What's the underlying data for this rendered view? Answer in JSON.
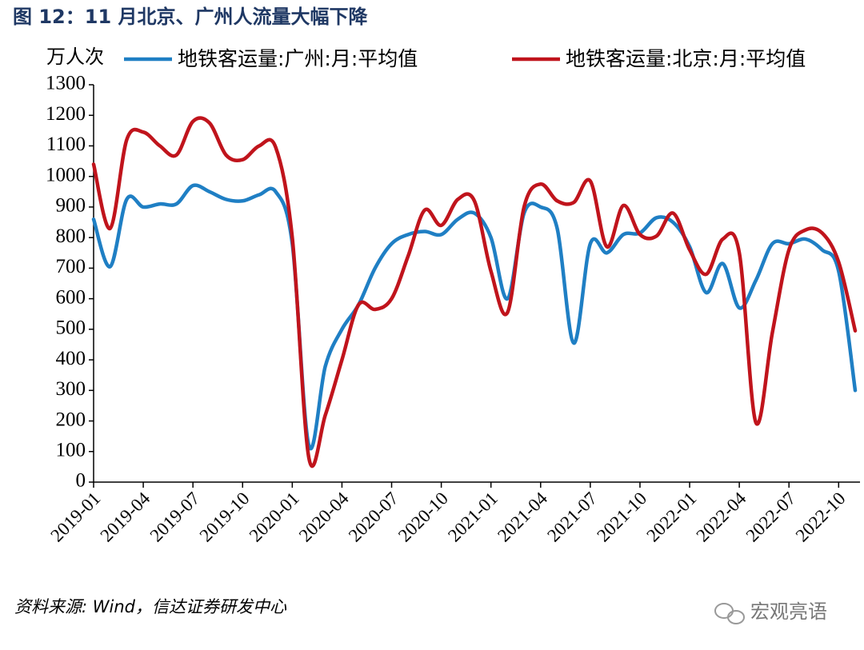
{
  "chart_data": {
    "type": "line",
    "title": "图 12：11 月北京、广州人流量大幅下降",
    "y_label": "万人次",
    "source": "资料来源: Wind，信达证券研发中心",
    "watermark": "宏观亮语",
    "categories": [
      "2019-01",
      null,
      null,
      "2019-04",
      null,
      null,
      "2019-07",
      null,
      null,
      "2019-10",
      null,
      null,
      "2020-01",
      null,
      null,
      "2020-04",
      null,
      null,
      "2020-07",
      null,
      null,
      "2020-10",
      null,
      null,
      "2021-01",
      null,
      null,
      "2021-04",
      null,
      null,
      "2021-07",
      null,
      null,
      "2021-10",
      null,
      null,
      "2022-01",
      null,
      null,
      "2022-04",
      null,
      null,
      "2022-07",
      null,
      null,
      "2022-10",
      null
    ],
    "series": [
      {
        "name": "地铁客运量:广州:月:平均值",
        "color": "#1f7fc4",
        "values": [
          860,
          705,
          925,
          900,
          910,
          910,
          970,
          950,
          925,
          920,
          940,
          950,
          780,
          120,
          380,
          500,
          580,
          700,
          780,
          810,
          820,
          810,
          860,
          880,
          800,
          600,
          880,
          900,
          830,
          455,
          780,
          750,
          810,
          815,
          865,
          850,
          770,
          620,
          715,
          570,
          660,
          780,
          780,
          795,
          760,
          690,
          300
        ]
      },
      {
        "name": "地铁客运量:北京:月:平均值",
        "color": "#c0141c",
        "values": [
          1040,
          830,
          1120,
          1145,
          1100,
          1070,
          1180,
          1175,
          1070,
          1055,
          1100,
          1095,
          800,
          80,
          220,
          400,
          580,
          565,
          600,
          740,
          890,
          840,
          925,
          920,
          690,
          555,
          900,
          975,
          920,
          915,
          985,
          770,
          905,
          810,
          805,
          880,
          760,
          680,
          795,
          750,
          195,
          490,
          760,
          825,
          815,
          720,
          495
        ]
      }
    ],
    "ylim": [
      0,
      1300
    ],
    "yticks": [
      0,
      100,
      200,
      300,
      400,
      500,
      600,
      700,
      800,
      900,
      1000,
      1100,
      1200,
      1300
    ],
    "legend": "top"
  }
}
